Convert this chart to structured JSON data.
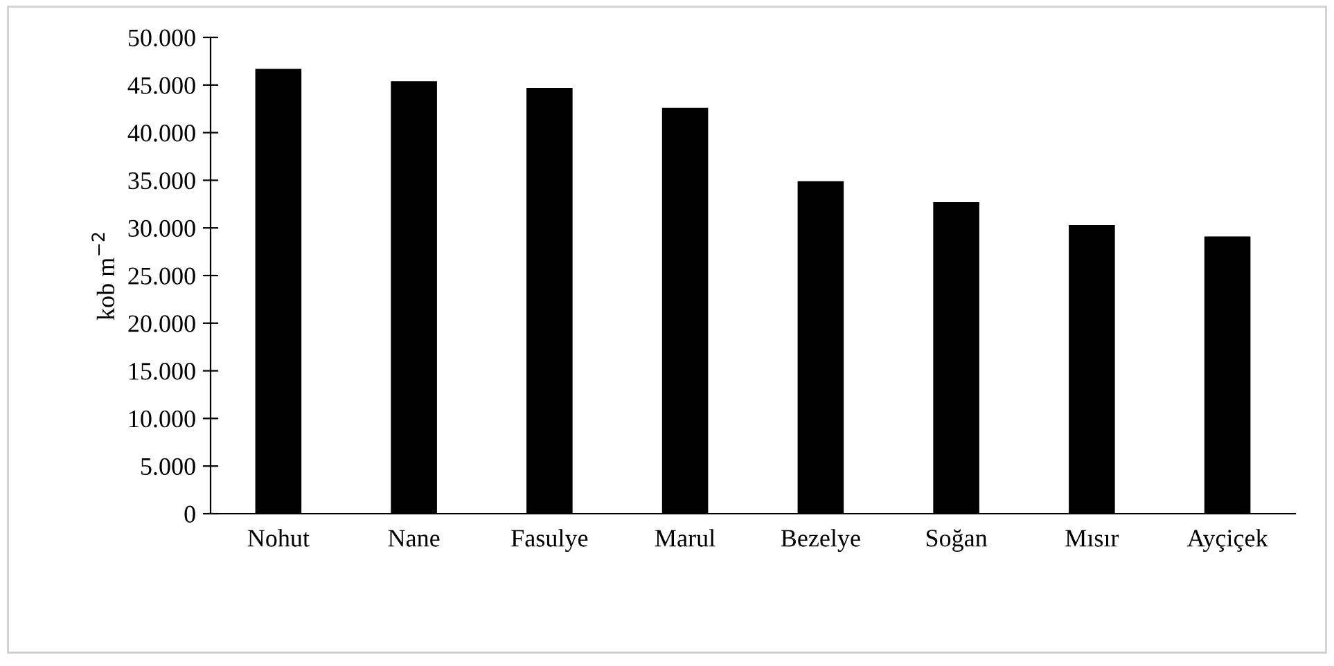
{
  "chart_data": {
    "type": "bar",
    "ylabel": "kob m$^{−2}$",
    "categories": [
      "Nohut",
      "Nane",
      "Fasulye",
      "Marul",
      "Bezelye",
      "Soğan",
      "Mısır",
      "Ayçiçek"
    ],
    "values": [
      46700,
      45400,
      44700,
      42600,
      34900,
      32700,
      30300,
      29100
    ],
    "color": "#000000",
    "ylim": [
      0,
      50000
    ],
    "yticks": [
      {
        "value": 0,
        "label": "0"
      },
      {
        "value": 5000,
        "label": "5.000"
      },
      {
        "value": 10000,
        "label": "10.000"
      },
      {
        "value": 15000,
        "label": "15.000"
      },
      {
        "value": 20000,
        "label": "20.000"
      },
      {
        "value": 25000,
        "label": "25.000"
      },
      {
        "value": 30000,
        "label": "30.000"
      },
      {
        "value": 35000,
        "label": "35.000"
      },
      {
        "value": 40000,
        "label": "40.000"
      },
      {
        "value": 45000,
        "label": "45.000"
      },
      {
        "value": 50000,
        "label": "50.000"
      }
    ],
    "grid": false,
    "legend": false
  }
}
